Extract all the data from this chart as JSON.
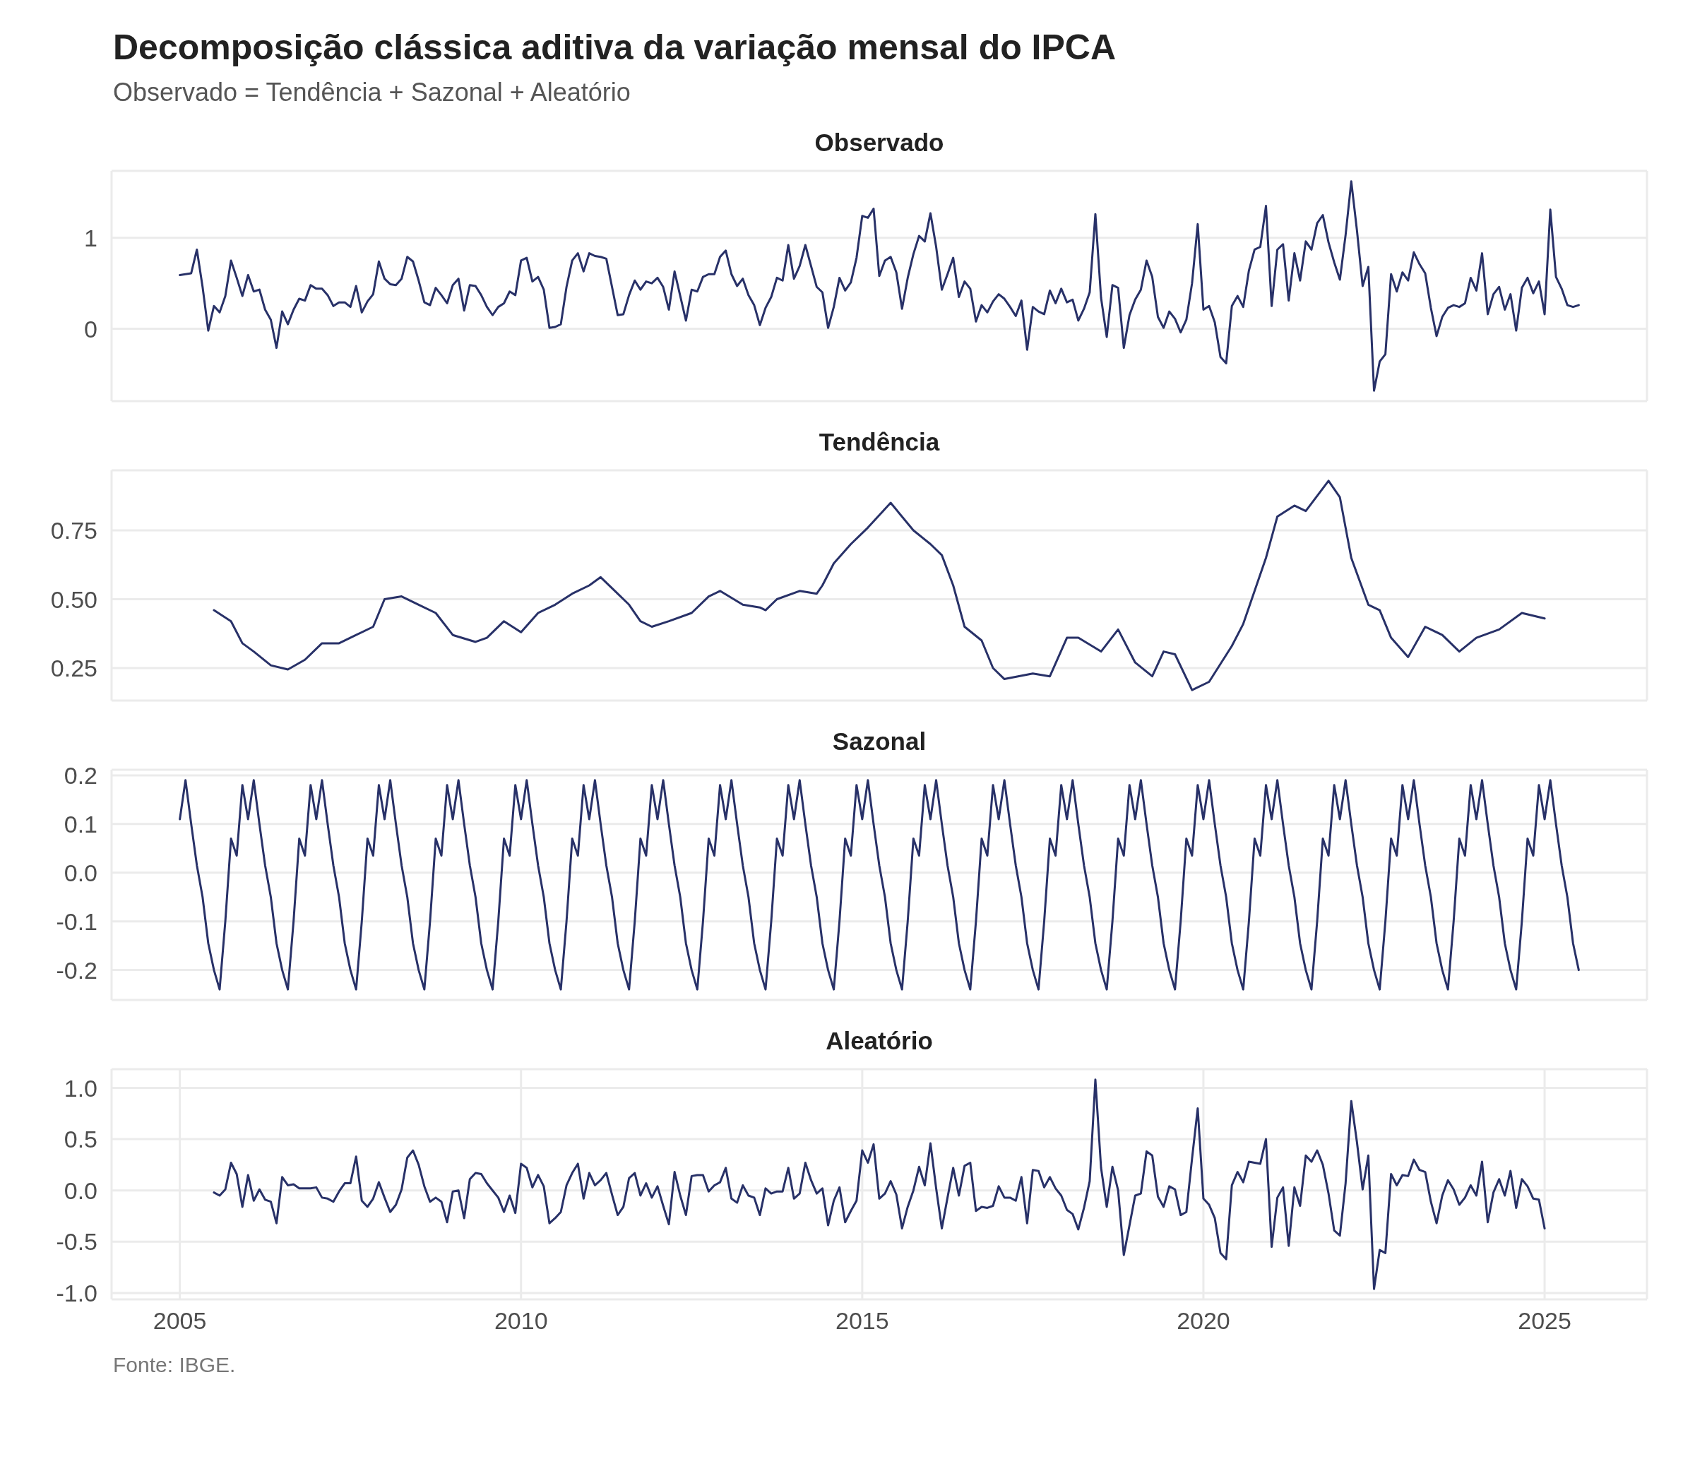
{
  "chart_data": [
    {
      "type": "other",
      "title": "Decomposição clássica aditiva da variação mensal do IPCA",
      "subtitle": "Observado = Tendência + Sazonal + Aleatório"
    },
    {
      "type": "line",
      "title": "Observado",
      "color": "#283168",
      "grid": true,
      "tick_labels": "y",
      "xlim": [
        "2004-01",
        "2026-07"
      ],
      "xticks": [
        "2005",
        "2010",
        "2015",
        "2020",
        "2025"
      ],
      "ylim": [
        -0.795,
        1.735
      ],
      "yticks": [
        0,
        1
      ],
      "x": [
        "2005-01",
        "2005-02",
        "2005-03",
        "2005-04",
        "2005-05",
        "2005-06",
        "2005-07",
        "2005-08",
        "2005-09",
        "2005-10",
        "2005-11",
        "2005-12",
        "2006-01",
        "2006-02",
        "2006-03",
        "2006-04",
        "2006-05",
        "2006-06",
        "2006-07",
        "2006-08",
        "2006-09",
        "2006-10",
        "2006-11",
        "2006-12",
        "2007-01",
        "2007-02",
        "2007-03",
        "2007-04",
        "2007-05",
        "2007-06",
        "2007-07",
        "2007-08",
        "2007-09",
        "2007-10",
        "2007-11",
        "2007-12",
        "2008-01",
        "2008-02",
        "2008-03",
        "2008-04",
        "2008-05",
        "2008-06",
        "2008-07",
        "2008-08",
        "2008-09",
        "2008-10",
        "2008-11",
        "2008-12",
        "2009-01",
        "2009-02",
        "2009-03",
        "2009-04",
        "2009-05",
        "2009-06",
        "2009-07",
        "2009-08",
        "2009-09",
        "2009-10",
        "2009-11",
        "2009-12",
        "2010-01",
        "2010-02",
        "2010-03",
        "2010-04",
        "2010-05",
        "2010-06",
        "2010-07",
        "2010-08",
        "2010-09",
        "2010-10",
        "2010-11",
        "2010-12",
        "2011-01",
        "2011-02",
        "2011-03",
        "2011-04",
        "2011-05",
        "2011-06",
        "2011-07",
        "2011-08",
        "2011-09",
        "2011-10",
        "2011-11",
        "2011-12",
        "2012-01",
        "2012-02",
        "2012-03",
        "2012-04",
        "2012-05",
        "2012-06",
        "2012-07",
        "2012-08",
        "2012-09",
        "2012-10",
        "2012-11",
        "2012-12",
        "2013-01",
        "2013-02",
        "2013-03",
        "2013-04",
        "2013-05",
        "2013-06",
        "2013-07",
        "2013-08",
        "2013-09",
        "2013-10",
        "2013-11",
        "2013-12",
        "2014-01",
        "2014-02",
        "2014-03",
        "2014-04",
        "2014-05",
        "2014-06",
        "2014-07",
        "2014-08",
        "2014-09",
        "2014-10",
        "2014-11",
        "2014-12",
        "2015-01",
        "2015-02",
        "2015-03",
        "2015-04",
        "2015-05",
        "2015-06",
        "2015-07",
        "2015-08",
        "2015-09",
        "2015-10",
        "2015-11",
        "2015-12",
        "2016-01",
        "2016-02",
        "2016-03",
        "2016-04",
        "2016-05",
        "2016-06",
        "2016-07",
        "2016-08",
        "2016-09",
        "2016-10",
        "2016-11",
        "2016-12",
        "2017-01",
        "2017-02",
        "2017-03",
        "2017-04",
        "2017-05",
        "2017-06",
        "2017-07",
        "2017-08",
        "2017-09",
        "2017-10",
        "2017-11",
        "2017-12",
        "2018-01",
        "2018-02",
        "2018-03",
        "2018-04",
        "2018-05",
        "2018-06",
        "2018-07",
        "2018-08",
        "2018-09",
        "2018-10",
        "2018-11",
        "2018-12",
        "2019-01",
        "2019-02",
        "2019-03",
        "2019-04",
        "2019-05",
        "2019-06",
        "2019-07",
        "2019-08",
        "2019-09",
        "2019-10",
        "2019-11",
        "2019-12",
        "2020-01",
        "2020-02",
        "2020-03",
        "2020-04",
        "2020-05",
        "2020-06",
        "2020-07",
        "2020-08",
        "2020-09",
        "2020-10",
        "2020-11",
        "2020-12",
        "2021-01",
        "2021-02",
        "2021-03",
        "2021-04",
        "2021-05",
        "2021-06",
        "2021-07",
        "2021-08",
        "2021-09",
        "2021-10",
        "2021-11",
        "2021-12",
        "2022-01",
        "2022-02",
        "2022-03",
        "2022-04",
        "2022-05",
        "2022-06",
        "2022-07",
        "2022-08",
        "2022-09",
        "2022-10",
        "2022-11",
        "2022-12",
        "2023-01",
        "2023-02",
        "2023-03",
        "2023-04",
        "2023-05",
        "2023-06",
        "2023-07",
        "2023-08",
        "2023-09",
        "2023-10",
        "2023-11",
        "2023-12",
        "2024-01",
        "2024-02",
        "2024-03",
        "2024-04",
        "2024-05",
        "2024-06",
        "2024-07",
        "2024-08",
        "2024-09",
        "2024-10",
        "2024-11",
        "2024-12",
        "2025-01",
        "2025-02",
        "2025-03",
        "2025-04",
        "2025-05",
        "2025-06",
        "2025-07"
      ],
      "values": [
        0.59,
        0.6,
        0.61,
        0.87,
        0.46,
        -0.02,
        0.25,
        0.18,
        0.36,
        0.75,
        0.56,
        0.36,
        0.59,
        0.41,
        0.43,
        0.21,
        0.1,
        -0.21,
        0.19,
        0.05,
        0.21,
        0.33,
        0.31,
        0.48,
        0.44,
        0.44,
        0.37,
        0.25,
        0.29,
        0.29,
        0.24,
        0.47,
        0.18,
        0.3,
        0.38,
        0.74,
        0.55,
        0.49,
        0.48,
        0.55,
        0.79,
        0.74,
        0.53,
        0.29,
        0.26,
        0.45,
        0.37,
        0.28,
        0.48,
        0.55,
        0.2,
        0.48,
        0.47,
        0.37,
        0.24,
        0.15,
        0.24,
        0.28,
        0.41,
        0.37,
        0.75,
        0.78,
        0.52,
        0.57,
        0.43,
        0.01,
        0.02,
        0.05,
        0.46,
        0.75,
        0.83,
        0.63,
        0.83,
        0.8,
        0.79,
        0.77,
        0.46,
        0.15,
        0.16,
        0.37,
        0.53,
        0.43,
        0.52,
        0.5,
        0.56,
        0.46,
        0.21,
        0.63,
        0.36,
        0.09,
        0.43,
        0.41,
        0.57,
        0.6,
        0.6,
        0.79,
        0.86,
        0.6,
        0.47,
        0.55,
        0.37,
        0.26,
        0.04,
        0.23,
        0.35,
        0.56,
        0.53,
        0.92,
        0.55,
        0.69,
        0.92,
        0.69,
        0.46,
        0.4,
        0.01,
        0.24,
        0.56,
        0.42,
        0.51,
        0.78,
        1.24,
        1.22,
        1.32,
        0.58,
        0.75,
        0.79,
        0.62,
        0.22,
        0.56,
        0.82,
        1.02,
        0.96,
        1.27,
        0.9,
        0.43,
        0.6,
        0.78,
        0.35,
        0.52,
        0.44,
        0.08,
        0.26,
        0.18,
        0.3,
        0.38,
        0.33,
        0.24,
        0.14,
        0.31,
        -0.23,
        0.24,
        0.19,
        0.16,
        0.42,
        0.28,
        0.44,
        0.29,
        0.32,
        0.09,
        0.22,
        0.4,
        1.26,
        0.34,
        -0.09,
        0.48,
        0.45,
        -0.21,
        0.15,
        0.32,
        0.43,
        0.75,
        0.57,
        0.13,
        0.01,
        0.19,
        0.11,
        -0.04,
        0.1,
        0.5,
        1.15,
        0.21,
        0.25,
        0.07,
        -0.31,
        -0.38,
        0.25,
        0.36,
        0.24,
        0.64,
        0.87,
        0.9,
        1.35,
        0.25,
        0.87,
        0.93,
        0.31,
        0.83,
        0.53,
        0.96,
        0.87,
        1.16,
        1.25,
        0.95,
        0.73,
        0.54,
        1.03,
        1.62,
        1.08,
        0.47,
        0.68,
        -0.68,
        -0.36,
        -0.28,
        0.6,
        0.41,
        0.62,
        0.53,
        0.84,
        0.71,
        0.61,
        0.23,
        -0.08,
        0.13,
        0.23,
        0.26,
        0.24,
        0.28,
        0.56,
        0.42,
        0.83,
        0.16,
        0.38,
        0.46,
        0.21,
        0.38,
        -0.02,
        0.45,
        0.56,
        0.39,
        0.52,
        0.16,
        1.31,
        0.57,
        0.44,
        0.26,
        0.24,
        0.26
      ]
    },
    {
      "type": "line",
      "title": "Tendência",
      "color": "#283168",
      "grid": true,
      "tick_labels": "y",
      "xlim": [
        "2004-01",
        "2026-07"
      ],
      "xticks": [
        "2005",
        "2010",
        "2015",
        "2020",
        "2025"
      ],
      "ylim": [
        0.132,
        0.968
      ],
      "yticks": [
        0.25,
        {
          "value": 0.5,
          "label": "0.50"
        },
        0.75
      ],
      "x": [
        "2005-07",
        "2005-10",
        "2005-12",
        "2006-02",
        "2006-05",
        "2006-08",
        "2006-11",
        "2007-02",
        "2007-05",
        "2007-08",
        "2007-11",
        "2008-01",
        "2008-04",
        "2008-07",
        "2008-10",
        "2009-01",
        "2009-05",
        "2009-07",
        "2009-10",
        "2010-01",
        "2010-04",
        "2010-07",
        "2010-10",
        "2011-01",
        "2011-03",
        "2011-05",
        "2011-08",
        "2011-10",
        "2011-12",
        "2012-03",
        "2012-07",
        "2012-10",
        "2012-12",
        "2013-04",
        "2013-07",
        "2013-08",
        "2013-10",
        "2014-02",
        "2014-05",
        "2014-06",
        "2014-08",
        "2014-11",
        "2015-02",
        "2015-06",
        "2015-10",
        "2016-01",
        "2016-03",
        "2016-05",
        "2016-07",
        "2016-10",
        "2016-12",
        "2017-02",
        "2017-07",
        "2017-10",
        "2018-01",
        "2018-03",
        "2018-07",
        "2018-10",
        "2019-01",
        "2019-04",
        "2019-06",
        "2019-08",
        "2019-11",
        "2020-02",
        "2020-06",
        "2020-08",
        "2020-12",
        "2021-02",
        "2021-05",
        "2021-07",
        "2021-11",
        "2022-01",
        "2022-03",
        "2022-06",
        "2022-08",
        "2022-10",
        "2023-01",
        "2023-04",
        "2023-07",
        "2023-10",
        "2024-01",
        "2024-05",
        "2024-09",
        "2025-01"
      ],
      "values": [
        0.46,
        0.42,
        0.34,
        0.31,
        0.26,
        0.245,
        0.28,
        0.34,
        0.34,
        0.37,
        0.4,
        0.5,
        0.51,
        0.48,
        0.45,
        0.37,
        0.345,
        0.36,
        0.42,
        0.38,
        0.45,
        0.48,
        0.52,
        0.55,
        0.58,
        0.54,
        0.48,
        0.42,
        0.4,
        0.42,
        0.45,
        0.51,
        0.53,
        0.48,
        0.47,
        0.46,
        0.5,
        0.53,
        0.52,
        0.55,
        0.63,
        0.7,
        0.76,
        0.85,
        0.75,
        0.7,
        0.66,
        0.55,
        0.4,
        0.35,
        0.25,
        0.21,
        0.23,
        0.22,
        0.36,
        0.36,
        0.31,
        0.39,
        0.27,
        0.22,
        0.31,
        0.3,
        0.17,
        0.2,
        0.33,
        0.41,
        0.65,
        0.8,
        0.84,
        0.82,
        0.93,
        0.87,
        0.65,
        0.48,
        0.46,
        0.36,
        0.29,
        0.4,
        0.37,
        0.31,
        0.36,
        0.39,
        0.45,
        0.43
      ]
    },
    {
      "type": "line",
      "title": "Sazonal",
      "color": "#283168",
      "grid": true,
      "tick_labels": "y",
      "xlim": [
        "2004-01",
        "2026-07"
      ],
      "xticks": [
        "2005",
        "2010",
        "2015",
        "2020",
        "2025"
      ],
      "ylim": [
        -0.2615,
        0.2115
      ],
      "yticks": [
        -0.2,
        -0.1,
        {
          "value": 0,
          "label": "0.0"
        },
        0.1,
        0.2
      ],
      "x": [
        "2005-01",
        "2005-02",
        "2005-03",
        "2005-04",
        "2005-05",
        "2005-06",
        "2005-07",
        "2005-08",
        "2005-09",
        "2005-10",
        "2005-11",
        "2005-12",
        "2006-01",
        "2006-02",
        "2006-03",
        "2006-04",
        "2006-05",
        "2006-06",
        "2006-07",
        "2006-08",
        "2006-09",
        "2006-10",
        "2006-11",
        "2006-12",
        "2007-01",
        "2007-02",
        "2007-03",
        "2007-04",
        "2007-05",
        "2007-06",
        "2007-07",
        "2007-08",
        "2007-09",
        "2007-10",
        "2007-11",
        "2007-12",
        "2008-01",
        "2008-02",
        "2008-03",
        "2008-04",
        "2008-05",
        "2008-06",
        "2008-07",
        "2008-08",
        "2008-09",
        "2008-10",
        "2008-11",
        "2008-12",
        "2009-01",
        "2009-02",
        "2009-03",
        "2009-04",
        "2009-05",
        "2009-06",
        "2009-07",
        "2009-08",
        "2009-09",
        "2009-10",
        "2009-11",
        "2009-12",
        "2010-01",
        "2010-02",
        "2010-03",
        "2010-04",
        "2010-05",
        "2010-06",
        "2010-07",
        "2010-08",
        "2010-09",
        "2010-10",
        "2010-11",
        "2010-12",
        "2011-01",
        "2011-02",
        "2011-03",
        "2011-04",
        "2011-05",
        "2011-06",
        "2011-07",
        "2011-08",
        "2011-09",
        "2011-10",
        "2011-11",
        "2011-12",
        "2012-01",
        "2012-02",
        "2012-03",
        "2012-04",
        "2012-05",
        "2012-06",
        "2012-07",
        "2012-08",
        "2012-09",
        "2012-10",
        "2012-11",
        "2012-12",
        "2013-01",
        "2013-02",
        "2013-03",
        "2013-04",
        "2013-05",
        "2013-06",
        "2013-07",
        "2013-08",
        "2013-09",
        "2013-10",
        "2013-11",
        "2013-12",
        "2014-01",
        "2014-02",
        "2014-03",
        "2014-04",
        "2014-05",
        "2014-06",
        "2014-07",
        "2014-08",
        "2014-09",
        "2014-10",
        "2014-11",
        "2014-12",
        "2015-01",
        "2015-02",
        "2015-03",
        "2015-04",
        "2015-05",
        "2015-06",
        "2015-07",
        "2015-08",
        "2015-09",
        "2015-10",
        "2015-11",
        "2015-12",
        "2016-01",
        "2016-02",
        "2016-03",
        "2016-04",
        "2016-05",
        "2016-06",
        "2016-07",
        "2016-08",
        "2016-09",
        "2016-10",
        "2016-11",
        "2016-12",
        "2017-01",
        "2017-02",
        "2017-03",
        "2017-04",
        "2017-05",
        "2017-06",
        "2017-07",
        "2017-08",
        "2017-09",
        "2017-10",
        "2017-11",
        "2017-12",
        "2018-01",
        "2018-02",
        "2018-03",
        "2018-04",
        "2018-05",
        "2018-06",
        "2018-07",
        "2018-08",
        "2018-09",
        "2018-10",
        "2018-11",
        "2018-12",
        "2019-01",
        "2019-02",
        "2019-03",
        "2019-04",
        "2019-05",
        "2019-06",
        "2019-07",
        "2019-08",
        "2019-09",
        "2019-10",
        "2019-11",
        "2019-12",
        "2020-01",
        "2020-02",
        "2020-03",
        "2020-04",
        "2020-05",
        "2020-06",
        "2020-07",
        "2020-08",
        "2020-09",
        "2020-10",
        "2020-11",
        "2020-12",
        "2021-01",
        "2021-02",
        "2021-03",
        "2021-04",
        "2021-05",
        "2021-06",
        "2021-07",
        "2021-08",
        "2021-09",
        "2021-10",
        "2021-11",
        "2021-12",
        "2022-01",
        "2022-02",
        "2022-03",
        "2022-04",
        "2022-05",
        "2022-06",
        "2022-07",
        "2022-08",
        "2022-09",
        "2022-10",
        "2022-11",
        "2022-12",
        "2023-01",
        "2023-02",
        "2023-03",
        "2023-04",
        "2023-05",
        "2023-06",
        "2023-07",
        "2023-08",
        "2023-09",
        "2023-10",
        "2023-11",
        "2023-12",
        "2024-01",
        "2024-02",
        "2024-03",
        "2024-04",
        "2024-05",
        "2024-06",
        "2024-07",
        "2024-08",
        "2024-09",
        "2024-10",
        "2024-11",
        "2024-12",
        "2025-01",
        "2025-02",
        "2025-03",
        "2025-04",
        "2025-05",
        "2025-06",
        "2025-07"
      ],
      "values": [
        0.11,
        0.19,
        0.1,
        0.015,
        -0.05,
        -0.145,
        -0.2,
        -0.24,
        -0.1,
        0.07,
        0.035,
        0.18,
        0.11,
        0.19,
        0.1,
        0.015,
        -0.05,
        -0.145,
        -0.2,
        -0.24,
        -0.1,
        0.07,
        0.035,
        0.18,
        0.11,
        0.19,
        0.1,
        0.015,
        -0.05,
        -0.145,
        -0.2,
        -0.24,
        -0.1,
        0.07,
        0.035,
        0.18,
        0.11,
        0.19,
        0.1,
        0.015,
        -0.05,
        -0.145,
        -0.2,
        -0.24,
        -0.1,
        0.07,
        0.035,
        0.18,
        0.11,
        0.19,
        0.1,
        0.015,
        -0.05,
        -0.145,
        -0.2,
        -0.24,
        -0.1,
        0.07,
        0.035,
        0.18,
        0.11,
        0.19,
        0.1,
        0.015,
        -0.05,
        -0.145,
        -0.2,
        -0.24,
        -0.1,
        0.07,
        0.035,
        0.18,
        0.11,
        0.19,
        0.1,
        0.015,
        -0.05,
        -0.145,
        -0.2,
        -0.24,
        -0.1,
        0.07,
        0.035,
        0.18,
        0.11,
        0.19,
        0.1,
        0.015,
        -0.05,
        -0.145,
        -0.2,
        -0.24,
        -0.1,
        0.07,
        0.035,
        0.18,
        0.11,
        0.19,
        0.1,
        0.015,
        -0.05,
        -0.145,
        -0.2,
        -0.24,
        -0.1,
        0.07,
        0.035,
        0.18,
        0.11,
        0.19,
        0.1,
        0.015,
        -0.05,
        -0.145,
        -0.2,
        -0.24,
        -0.1,
        0.07,
        0.035,
        0.18,
        0.11,
        0.19,
        0.1,
        0.015,
        -0.05,
        -0.145,
        -0.2,
        -0.24,
        -0.1,
        0.07,
        0.035,
        0.18,
        0.11,
        0.19,
        0.1,
        0.015,
        -0.05,
        -0.145,
        -0.2,
        -0.24,
        -0.1,
        0.07,
        0.035,
        0.18,
        0.11,
        0.19,
        0.1,
        0.015,
        -0.05,
        -0.145,
        -0.2,
        -0.24,
        -0.1,
        0.07,
        0.035,
        0.18,
        0.11,
        0.19,
        0.1,
        0.015,
        -0.05,
        -0.145,
        -0.2,
        -0.24,
        -0.1,
        0.07,
        0.035,
        0.18,
        0.11,
        0.19,
        0.1,
        0.015,
        -0.05,
        -0.145,
        -0.2,
        -0.24,
        -0.1,
        0.07,
        0.035,
        0.18,
        0.11,
        0.19,
        0.1,
        0.015,
        -0.05,
        -0.145,
        -0.2,
        -0.24,
        -0.1,
        0.07,
        0.035,
        0.18,
        0.11,
        0.19,
        0.1,
        0.015,
        -0.05,
        -0.145,
        -0.2,
        -0.24,
        -0.1,
        0.07,
        0.035,
        0.18,
        0.11,
        0.19,
        0.1,
        0.015,
        -0.05,
        -0.145,
        -0.2,
        -0.24,
        -0.1,
        0.07,
        0.035,
        0.18,
        0.11,
        0.19,
        0.1,
        0.015,
        -0.05,
        -0.145,
        -0.2,
        -0.24,
        -0.1,
        0.07,
        0.035,
        0.18,
        0.11,
        0.19,
        0.1,
        0.015,
        -0.05,
        -0.145,
        -0.2,
        -0.24,
        -0.1,
        0.07,
        0.035,
        0.18,
        0.11,
        0.19,
        0.1,
        0.015,
        -0.05,
        -0.145,
        -0.2
      ]
    },
    {
      "type": "line",
      "title": "Aleatório",
      "color": "#283168",
      "grid": true,
      "xlim": [
        "2004-01",
        "2026-07"
      ],
      "xticks": [
        "2005",
        "2010",
        "2015",
        "2020",
        "2025"
      ],
      "ylim": [
        -1.062,
        1.182
      ],
      "yticks": [
        {
          "value": -1,
          "label": "-1.0"
        },
        -0.5,
        {
          "value": 0,
          "label": "0.0"
        },
        0.5,
        {
          "value": 1,
          "label": "1.0"
        }
      ],
      "annotations": [
        "Fonte: IBGE."
      ],
      "x": [
        "2005-07",
        "2005-08",
        "2005-09",
        "2005-10",
        "2005-11",
        "2005-12",
        "2006-01",
        "2006-02",
        "2006-03",
        "2006-04",
        "2006-05",
        "2006-06",
        "2006-07",
        "2006-08",
        "2006-09",
        "2006-10",
        "2006-11",
        "2006-12",
        "2007-01",
        "2007-02",
        "2007-03",
        "2007-04",
        "2007-05",
        "2007-06",
        "2007-07",
        "2007-08",
        "2007-09",
        "2007-10",
        "2007-11",
        "2007-12",
        "2008-01",
        "2008-02",
        "2008-03",
        "2008-04",
        "2008-05",
        "2008-06",
        "2008-07",
        "2008-08",
        "2008-09",
        "2008-10",
        "2008-11",
        "2008-12",
        "2009-01",
        "2009-02",
        "2009-03",
        "2009-04",
        "2009-05",
        "2009-06",
        "2009-07",
        "2009-08",
        "2009-09",
        "2009-10",
        "2009-11",
        "2009-12",
        "2010-01",
        "2010-02",
        "2010-03",
        "2010-04",
        "2010-05",
        "2010-06",
        "2010-07",
        "2010-08",
        "2010-09",
        "2010-10",
        "2010-11",
        "2010-12",
        "2011-01",
        "2011-02",
        "2011-03",
        "2011-04",
        "2011-05",
        "2011-06",
        "2011-07",
        "2011-08",
        "2011-09",
        "2011-10",
        "2011-11",
        "2011-12",
        "2012-01",
        "2012-02",
        "2012-03",
        "2012-04",
        "2012-05",
        "2012-06",
        "2012-07",
        "2012-08",
        "2012-09",
        "2012-10",
        "2012-11",
        "2012-12",
        "2013-01",
        "2013-02",
        "2013-03",
        "2013-04",
        "2013-05",
        "2013-06",
        "2013-07",
        "2013-08",
        "2013-09",
        "2013-10",
        "2013-11",
        "2013-12",
        "2014-01",
        "2014-02",
        "2014-03",
        "2014-04",
        "2014-05",
        "2014-06",
        "2014-07",
        "2014-08",
        "2014-09",
        "2014-10",
        "2014-11",
        "2014-12",
        "2015-01",
        "2015-02",
        "2015-03",
        "2015-04",
        "2015-05",
        "2015-06",
        "2015-07",
        "2015-08",
        "2015-09",
        "2015-10",
        "2015-11",
        "2015-12",
        "2016-01",
        "2016-02",
        "2016-03",
        "2016-04",
        "2016-05",
        "2016-06",
        "2016-07",
        "2016-08",
        "2016-09",
        "2016-10",
        "2016-11",
        "2016-12",
        "2017-01",
        "2017-02",
        "2017-03",
        "2017-04",
        "2017-05",
        "2017-06",
        "2017-07",
        "2017-08",
        "2017-09",
        "2017-10",
        "2017-11",
        "2017-12",
        "2018-01",
        "2018-02",
        "2018-03",
        "2018-04",
        "2018-05",
        "2018-06",
        "2018-07",
        "2018-08",
        "2018-09",
        "2018-10",
        "2018-11",
        "2018-12",
        "2019-01",
        "2019-02",
        "2019-03",
        "2019-04",
        "2019-05",
        "2019-06",
        "2019-07",
        "2019-08",
        "2019-09",
        "2019-10",
        "2019-11",
        "2019-12",
        "2020-01",
        "2020-02",
        "2020-03",
        "2020-04",
        "2020-05",
        "2020-06",
        "2020-07",
        "2020-08",
        "2020-09",
        "2020-10",
        "2020-11",
        "2020-12",
        "2021-01",
        "2021-02",
        "2021-03",
        "2021-04",
        "2021-05",
        "2021-06",
        "2021-07",
        "2021-08",
        "2021-09",
        "2021-10",
        "2021-11",
        "2021-12",
        "2022-01",
        "2022-02",
        "2022-03",
        "2022-04",
        "2022-05",
        "2022-06",
        "2022-07",
        "2022-08",
        "2022-09",
        "2022-10",
        "2022-11",
        "2022-12",
        "2023-01",
        "2023-02",
        "2023-03",
        "2023-04",
        "2023-05",
        "2023-06",
        "2023-07",
        "2023-08",
        "2023-09",
        "2023-10",
        "2023-11",
        "2023-12",
        "2024-01",
        "2024-02",
        "2024-03",
        "2024-04",
        "2024-05",
        "2024-06",
        "2024-07",
        "2024-08",
        "2024-09",
        "2024-10",
        "2024-11",
        "2024-12",
        "2025-01"
      ],
      "values": [
        -0.02,
        -0.05,
        0.01,
        0.27,
        0.16,
        -0.16,
        0.15,
        -0.1,
        0.01,
        -0.09,
        -0.11,
        -0.32,
        0.13,
        0.05,
        0.06,
        0.02,
        0.02,
        0.02,
        0.03,
        -0.07,
        -0.08,
        -0.11,
        -0.01,
        0.07,
        0.07,
        0.33,
        -0.1,
        -0.16,
        -0.08,
        0.08,
        -0.07,
        -0.21,
        -0.14,
        0.01,
        0.32,
        0.39,
        0.25,
        0.04,
        -0.11,
        -0.07,
        -0.11,
        -0.31,
        -0.01,
        0.0,
        -0.27,
        0.11,
        0.17,
        0.16,
        0.07,
        0.0,
        -0.07,
        -0.21,
        -0.05,
        -0.22,
        0.26,
        0.22,
        0.03,
        0.15,
        0.04,
        -0.32,
        -0.27,
        -0.21,
        0.05,
        0.17,
        0.26,
        -0.08,
        0.17,
        0.05,
        0.1,
        0.17,
        -0.04,
        -0.24,
        -0.16,
        0.12,
        0.17,
        -0.05,
        0.07,
        -0.07,
        0.04,
        -0.15,
        -0.33,
        0.18,
        -0.05,
        -0.24,
        0.14,
        0.15,
        0.15,
        -0.01,
        0.05,
        0.08,
        0.22,
        -0.08,
        -0.12,
        0.05,
        -0.05,
        -0.07,
        -0.24,
        0.02,
        -0.03,
        -0.01,
        -0.01,
        0.22,
        -0.08,
        -0.03,
        0.27,
        0.1,
        -0.03,
        0.02,
        -0.34,
        -0.1,
        0.03,
        -0.31,
        -0.2,
        -0.1,
        0.39,
        0.27,
        0.45,
        -0.08,
        -0.03,
        0.09,
        -0.04,
        -0.37,
        -0.16,
        0.0,
        0.23,
        0.05,
        0.46,
        0.02,
        -0.37,
        -0.07,
        0.22,
        -0.05,
        0.24,
        0.27,
        -0.2,
        -0.16,
        -0.17,
        -0.15,
        0.04,
        -0.07,
        -0.07,
        -0.1,
        0.13,
        -0.32,
        0.2,
        0.19,
        0.03,
        0.13,
        0.02,
        -0.05,
        -0.19,
        -0.23,
        -0.38,
        -0.17,
        0.09,
        1.08,
        0.22,
        -0.16,
        0.23,
        0.0,
        -0.63,
        -0.34,
        -0.05,
        -0.03,
        0.38,
        0.34,
        -0.06,
        -0.16,
        0.04,
        0.01,
        -0.24,
        -0.21,
        0.31,
        0.8,
        -0.08,
        -0.14,
        -0.27,
        -0.61,
        -0.67,
        0.05,
        0.18,
        0.08,
        0.28,
        0.27,
        0.26,
        0.5,
        -0.55,
        -0.07,
        0.03,
        -0.54,
        0.03,
        -0.15,
        0.34,
        0.28,
        0.39,
        0.25,
        -0.03,
        -0.39,
        -0.44,
        0.07,
        0.87,
        0.47,
        0.01,
        0.34,
        -0.96,
        -0.58,
        -0.61,
        0.16,
        0.05,
        0.15,
        0.14,
        0.3,
        0.2,
        0.18,
        -0.11,
        -0.32,
        -0.05,
        0.1,
        0.01,
        -0.14,
        -0.07,
        0.05,
        -0.05,
        0.28,
        -0.31,
        -0.02,
        0.11,
        -0.05,
        0.19,
        -0.17,
        0.11,
        0.04,
        -0.08,
        -0.09,
        -0.37
      ]
    }
  ]
}
